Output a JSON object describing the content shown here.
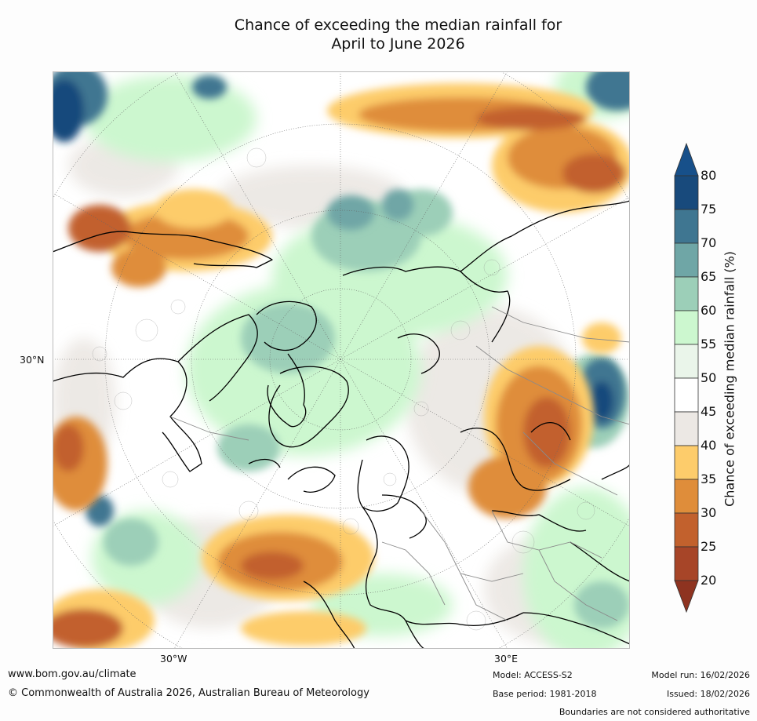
{
  "title": {
    "line1": "Chance of exceeding the median rainfall for",
    "line2": "April to June 2026"
  },
  "map": {
    "lat_label": "30°N",
    "lon_labels": [
      "30°W",
      "30°E"
    ]
  },
  "colorbar": {
    "label": "Chance of exceeding median rainfall (%)",
    "ticks": [
      "80",
      "75",
      "70",
      "65",
      "60",
      "55",
      "50",
      "45",
      "40",
      "35",
      "30",
      "25",
      "20"
    ],
    "colors": {
      "75_80": "#184a7c",
      "70_75": "#3f7691",
      "65_70": "#6fa6a6",
      "60_65": "#9ccfb8",
      "55_60": "#ccf7cf",
      "50_55": "#eaf5ea",
      "45_50": "#ffffff",
      "40_45": "#ece8e4",
      "35_40": "#fdcc6b",
      "30_35": "#df8d3a",
      "25_30": "#c2612d",
      "20_25": "#a74528",
      "below_20": "#8e3320",
      "above_80": "#17508a"
    }
  },
  "footer": {
    "website": "www.bom.gov.au/climate",
    "copyright": "© Commonwealth of Australia 2026, Australian Bureau of Meteorology",
    "model": "Model: ACCESS-S2",
    "base_period": "Base period: 1981-2018",
    "model_run": "Model run: 16/02/2026",
    "issued": "Issued: 18/02/2026",
    "disclaimer": "Boundaries are not considered authoritative"
  }
}
